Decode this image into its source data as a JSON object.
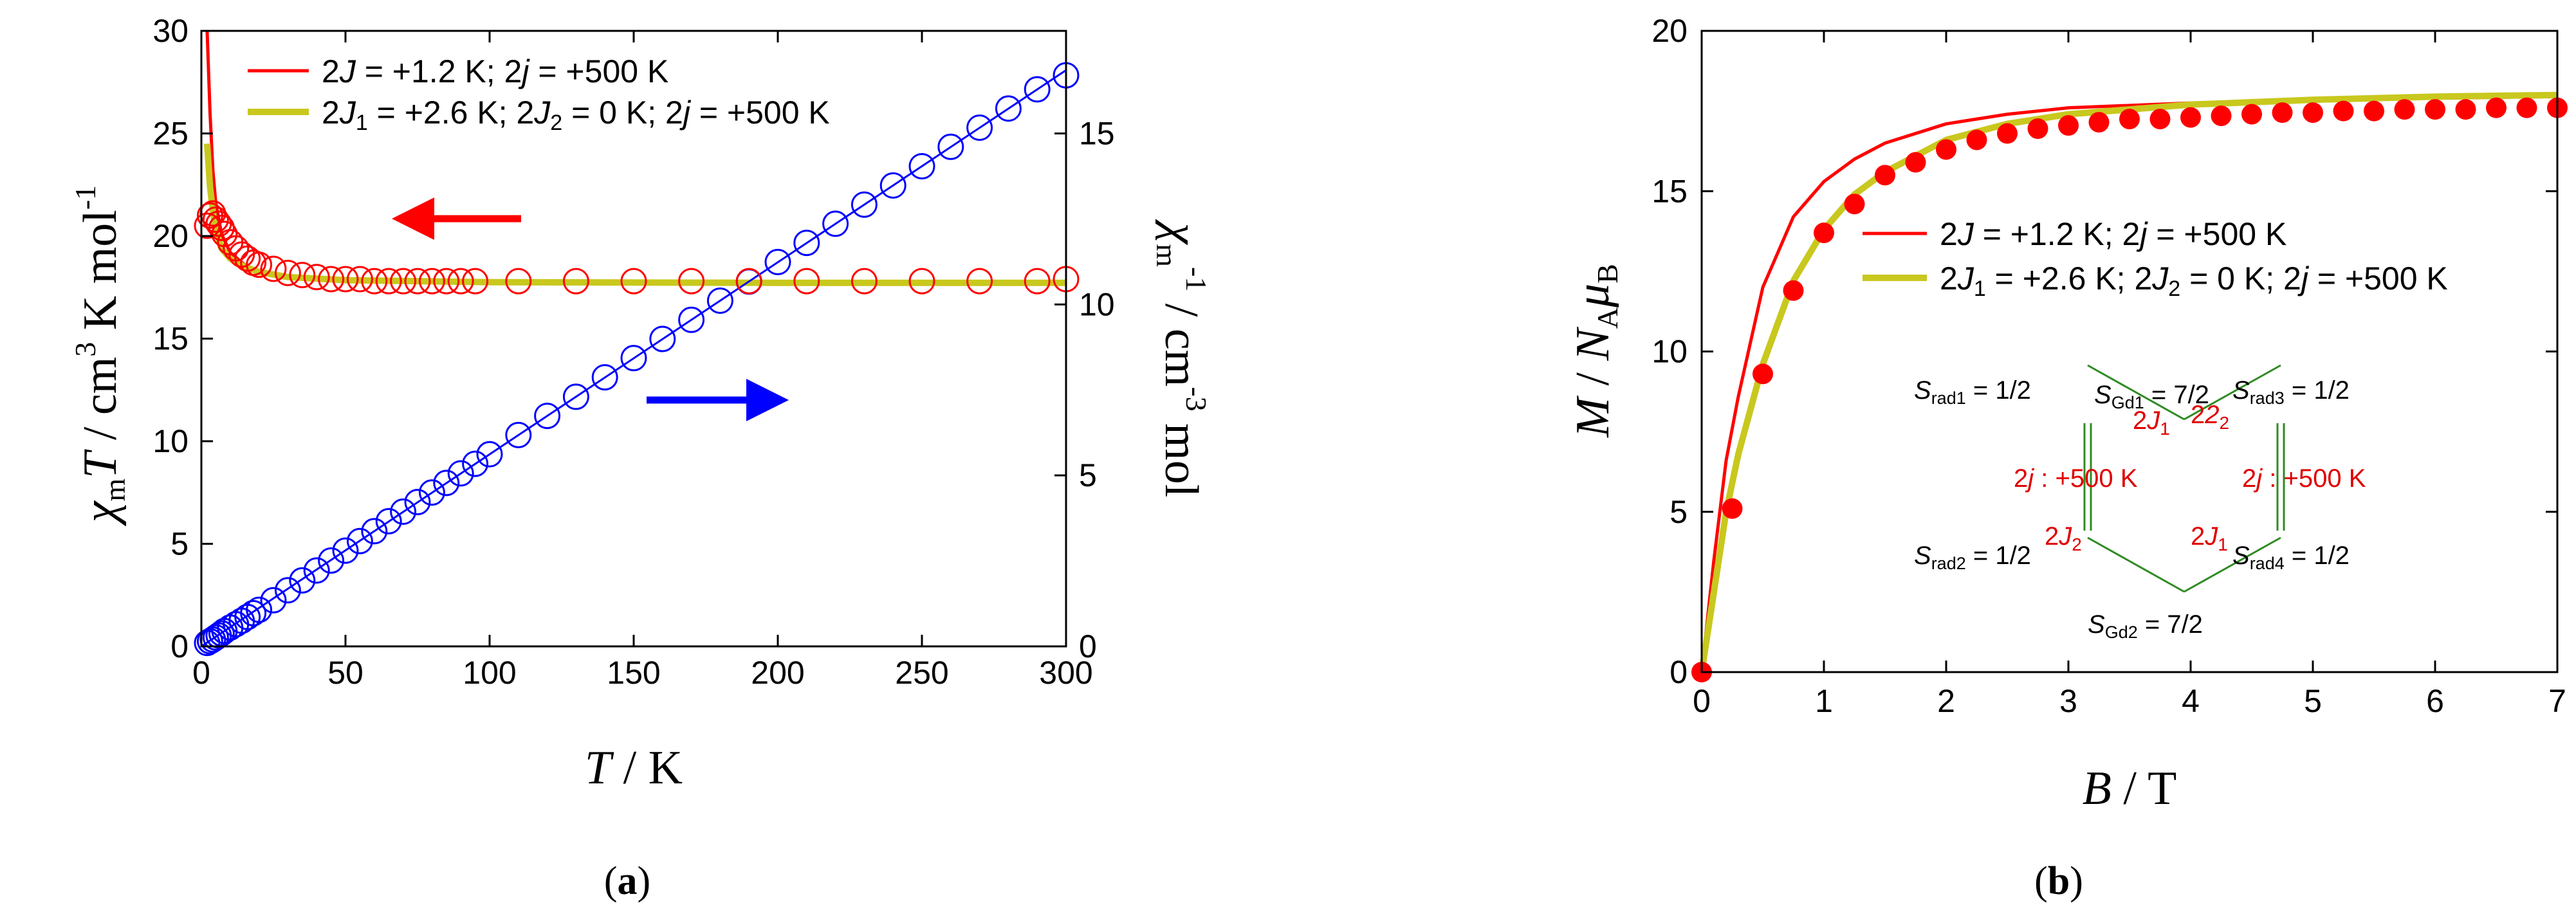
{
  "chart_data": [
    {
      "type": "scatter",
      "panel_label": "(a)",
      "label_letter": "a",
      "xlabel": "T / K",
      "ylabel_left": "χmT / cm3 K mol-1",
      "ylabel_right": "χm-1 / cm-3 mol",
      "x_ticks": [
        "0",
        "50",
        "100",
        "150",
        "200",
        "250",
        "300"
      ],
      "y_left_ticks": [
        "0",
        "5",
        "10",
        "15",
        "20",
        "25",
        "30"
      ],
      "y_right_ticks": [
        "0",
        "5",
        "10",
        "15"
      ],
      "xlim": [
        0,
        300
      ],
      "ylim_left": [
        0,
        30
      ],
      "ylim_right": [
        0,
        18
      ],
      "legend": [
        {
          "text": "2J = +1.2 K; 2j = +500 K",
          "color": "#ff0000"
        },
        {
          "text": "2J1 = +2.6 K; 2J2 = 0 K; 2j = +500 K",
          "color": "#c8c81e"
        }
      ],
      "series": [
        {
          "name": "χmT experimental (left axis)",
          "marker": "open-circle",
          "color": "#ff0000",
          "x": [
            2,
            3,
            4,
            5,
            6,
            7,
            8,
            10,
            12,
            14,
            16,
            18,
            20,
            25,
            30,
            35,
            40,
            45,
            50,
            55,
            60,
            65,
            70,
            75,
            80,
            85,
            90,
            95,
            110,
            130,
            150,
            170,
            190,
            210,
            230,
            250,
            270,
            290,
            300
          ],
          "y": [
            20.5,
            21.0,
            21.1,
            20.8,
            20.6,
            20.4,
            20.1,
            19.7,
            19.4,
            19.1,
            18.9,
            18.7,
            18.6,
            18.4,
            18.2,
            18.1,
            18.0,
            17.9,
            17.9,
            17.9,
            17.8,
            17.8,
            17.8,
            17.8,
            17.8,
            17.8,
            17.8,
            17.8,
            17.8,
            17.8,
            17.8,
            17.8,
            17.8,
            17.8,
            17.8,
            17.8,
            17.8,
            17.8,
            17.9
          ]
        },
        {
          "name": "χm-1 experimental (right axis)",
          "marker": "open-circle",
          "color": "#0000ff",
          "axis": "right",
          "x": [
            2,
            3,
            4,
            5,
            6,
            7,
            8,
            10,
            12,
            14,
            16,
            18,
            20,
            25,
            30,
            35,
            40,
            45,
            50,
            55,
            60,
            65,
            70,
            75,
            80,
            85,
            90,
            95,
            100,
            110,
            120,
            130,
            140,
            150,
            160,
            170,
            180,
            190,
            200,
            210,
            220,
            230,
            240,
            250,
            260,
            270,
            280,
            290,
            300
          ],
          "y": [
            0.1,
            0.15,
            0.2,
            0.26,
            0.32,
            0.38,
            0.45,
            0.55,
            0.65,
            0.75,
            0.86,
            0.97,
            1.07,
            1.35,
            1.64,
            1.93,
            2.22,
            2.51,
            2.8,
            3.08,
            3.37,
            3.66,
            3.94,
            4.22,
            4.5,
            4.78,
            5.06,
            5.34,
            5.62,
            6.18,
            6.74,
            7.3,
            7.87,
            8.43,
            8.99,
            9.55,
            10.11,
            10.67,
            11.24,
            11.8,
            12.36,
            12.92,
            13.48,
            14.04,
            14.61,
            15.17,
            15.73,
            16.29,
            16.7
          ]
        },
        {
          "name": "2J = +1.2 K; 2j = +500 K",
          "marker": "line",
          "color": "#ff0000",
          "x": [
            2,
            3,
            4,
            5,
            7,
            10,
            15,
            20,
            30,
            50,
            100,
            200,
            300
          ],
          "y": [
            30,
            26.0,
            23.2,
            21.6,
            20.1,
            19.2,
            18.6,
            18.3,
            18.05,
            17.9,
            17.8,
            17.75,
            17.75
          ]
        },
        {
          "name": "2J1 = +2.6 K; 2J2 = 0 K; 2j = +500 K",
          "marker": "line",
          "color": "#c8c81e",
          "x": [
            2,
            3,
            4,
            5,
            7,
            10,
            15,
            20,
            30,
            50,
            100,
            200,
            300
          ],
          "y": [
            24.5,
            22.4,
            21.2,
            20.3,
            19.4,
            18.9,
            18.5,
            18.25,
            18.0,
            17.85,
            17.75,
            17.72,
            17.72
          ]
        }
      ],
      "annotations": [
        "red arrow pointing left toward left axis",
        "blue arrow pointing right toward right axis"
      ]
    },
    {
      "type": "scatter",
      "panel_label": "(b)",
      "label_letter": "b",
      "xlabel": "B / T",
      "ylabel": "M / NAμB",
      "x_ticks": [
        "0",
        "1",
        "2",
        "3",
        "4",
        "5",
        "6",
        "7"
      ],
      "y_ticks": [
        "0",
        "5",
        "10",
        "15",
        "20"
      ],
      "xlim": [
        0,
        7
      ],
      "ylim": [
        0,
        20
      ],
      "legend": [
        {
          "text": "2J = +1.2 K; 2j = +500 K",
          "color": "#ff0000"
        },
        {
          "text": "2J1 = +2.6 K; 2J2 = 0 K; 2j = +500 K",
          "color": "#c8c81e"
        }
      ],
      "series": [
        {
          "name": "M experimental",
          "marker": "filled-circle",
          "color": "#ff0000",
          "x": [
            0,
            0.25,
            0.5,
            0.75,
            1.0,
            1.25,
            1.5,
            1.75,
            2.0,
            2.25,
            2.5,
            2.75,
            3.0,
            3.25,
            3.5,
            3.75,
            4.0,
            4.25,
            4.5,
            4.75,
            5.0,
            5.25,
            5.5,
            5.75,
            6.0,
            6.25,
            6.5,
            6.75,
            7.0
          ],
          "y": [
            0,
            5.1,
            9.3,
            11.9,
            13.7,
            14.6,
            15.5,
            15.9,
            16.3,
            16.6,
            16.8,
            16.95,
            17.05,
            17.15,
            17.25,
            17.25,
            17.3,
            17.35,
            17.4,
            17.45,
            17.45,
            17.5,
            17.5,
            17.55,
            17.55,
            17.55,
            17.6,
            17.6,
            17.6
          ]
        },
        {
          "name": "2J = +1.2 K; 2j = +500 K",
          "marker": "line",
          "color": "#ff0000",
          "x": [
            0,
            0.1,
            0.2,
            0.3,
            0.5,
            0.75,
            1.0,
            1.25,
            1.5,
            2.0,
            2.5,
            3.0,
            4.0,
            5.0,
            6.0,
            7.0
          ],
          "y": [
            0,
            3.5,
            6.6,
            8.6,
            12.0,
            14.2,
            15.3,
            16.0,
            16.5,
            17.1,
            17.4,
            17.6,
            17.75,
            17.85,
            17.9,
            17.95
          ]
        },
        {
          "name": "2J1 = +2.6 K; 2J2 = 0 K; 2j = +500 K",
          "marker": "line",
          "color": "#c8c81e",
          "x": [
            0,
            0.1,
            0.2,
            0.3,
            0.5,
            0.75,
            1.0,
            1.25,
            1.5,
            2.0,
            2.5,
            3.0,
            4.0,
            5.0,
            6.0,
            7.0
          ],
          "y": [
            0,
            2.5,
            5.0,
            6.8,
            9.6,
            12.2,
            13.8,
            14.9,
            15.6,
            16.6,
            17.1,
            17.4,
            17.7,
            17.85,
            17.95,
            18.0
          ]
        }
      ],
      "inset_scheme": {
        "spins": {
          "gd1": {
            "sym": "S",
            "sub": "Gd1",
            "val": " = 7/2"
          },
          "gd2": {
            "sym": "S",
            "sub": "Gd2",
            "val": " = 7/2"
          },
          "rad1": {
            "sym": "S",
            "sub": "rad1",
            "val": " = 1/2"
          },
          "rad2": {
            "sym": "S",
            "sub": "rad2",
            "val": " = 1/2"
          },
          "rad3": {
            "sym": "S",
            "sub": "rad3",
            "val": " = 1/2"
          },
          "rad4": {
            "sym": "S",
            "sub": "rad4",
            "val": " = 1/2"
          }
        },
        "couplings": {
          "j1_top": {
            "pre": "2",
            "sym": "J",
            "sub": "1"
          },
          "j2_top": {
            "pre": "2",
            "sym": "J",
            "sub": "2"
          },
          "j2_bottom": {
            "pre": "2",
            "sym": "J",
            "sub": "2"
          },
          "j1_bottom": {
            "pre": "2",
            "sym": "J",
            "sub": "1"
          },
          "jj_left": {
            "pre": "2",
            "sym": "j",
            "val": " : +500 K"
          },
          "jj_right": {
            "pre": "2",
            "sym": "j",
            "val": " : +500 K"
          }
        },
        "edge_color": "#2e8b22"
      }
    }
  ]
}
